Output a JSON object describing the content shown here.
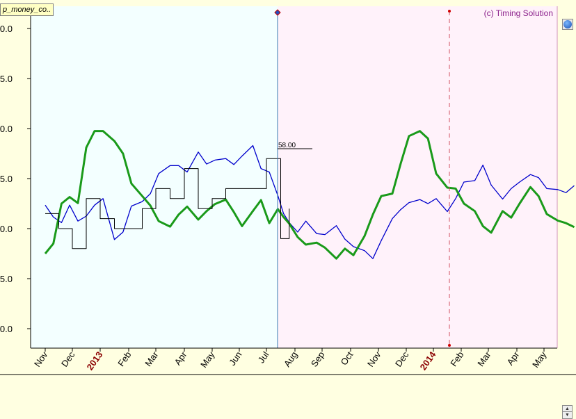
{
  "header": {
    "series_tag": "p_money_co..",
    "copyright": "(c) Timing Solution"
  },
  "marker_label": "58.00",
  "icons": {
    "globe": "globe-icon",
    "scroll_up": "arrow-up-icon",
    "scroll_down": "arrow-down-icon"
  },
  "colors": {
    "past_bg": "#f3ffff",
    "future_bg": "#fff2fa",
    "price": "#0000cc",
    "cycle": "#1a9a1a",
    "signal": "#000000",
    "year_label": "#8b0000",
    "axis": "#000000"
  },
  "chart_data": {
    "type": "line",
    "title": "",
    "xlabel": "",
    "ylabel": "",
    "x_tick_labels": [
      "Nov",
      "Dec",
      "2013",
      "Feb",
      "Mar",
      "Apr",
      "May",
      "Jun",
      "Jul",
      "Aug",
      "Sep",
      "Oct",
      "Nov",
      "Dec",
      "2014",
      "Feb",
      "Mar",
      "Apr",
      "May"
    ],
    "y_tick_labels": [
      "0.0",
      "5.0",
      "0.0",
      "5.0",
      "0.0",
      "5.0",
      "0.0"
    ],
    "grid": false,
    "series": [
      {
        "color": "#0000cc",
        "x": [
          0,
          0.3,
          0.6,
          0.9,
          1.2,
          1.5,
          1.8,
          2.1,
          2.5,
          2.8,
          3.1,
          3.5,
          3.8,
          4.1,
          4.5,
          4.8,
          5.1,
          5.5,
          5.8,
          6.1,
          6.5,
          6.8,
          7.1,
          7.5,
          7.8,
          8.1,
          8.4,
          8.6,
          8.8,
          9.1,
          9.4,
          9.8,
          10.1,
          10.5,
          10.8,
          11.1,
          11.5,
          11.8,
          12.1,
          12.5,
          12.8,
          13.1,
          13.5,
          13.8,
          14.1,
          14.5,
          14.8,
          15.1,
          15.5,
          15.8,
          16.1,
          16.5,
          16.8,
          17.1,
          17.5,
          17.8,
          18.1,
          18.5,
          18.8,
          19.1
        ],
        "values": [
          4.7,
          2.3,
          1.2,
          4.7,
          1.5,
          2.5,
          4.7,
          6.0,
          -2.2,
          -0.7,
          4.5,
          5.4,
          7.0,
          11.0,
          12.6,
          12.6,
          11.3,
          15.3,
          12.9,
          13.7,
          14.0,
          12.8,
          14.5,
          16.6,
          12.0,
          11.3,
          6.6,
          3.0,
          1.2,
          -0.7,
          1.5,
          -1.0,
          -1.2,
          0.6,
          -2.1,
          -3.6,
          -4.4,
          -6.0,
          -2.4,
          2.0,
          3.8,
          5.2,
          5.8,
          5.0,
          6.0,
          3.4,
          6.0,
          9.3,
          9.6,
          12.7,
          8.7,
          5.9,
          8.0,
          9.3,
          10.8,
          10.2,
          8.0,
          7.8,
          7.2,
          8.6
        ]
      },
      {
        "color": "#1a9a1a",
        "x": [
          0,
          0.3,
          0.6,
          0.9,
          1.2,
          1.5,
          1.8,
          2.1,
          2.5,
          2.8,
          3.1,
          3.5,
          3.8,
          4.1,
          4.5,
          4.8,
          5.1,
          5.5,
          5.8,
          6.1,
          6.5,
          6.8,
          7.1,
          7.5,
          7.8,
          8.1,
          8.4,
          8.6,
          8.8,
          9.1,
          9.4,
          9.8,
          10.1,
          10.5,
          10.8,
          11.1,
          11.5,
          11.8,
          12.1,
          12.5,
          12.8,
          13.1,
          13.5,
          13.8,
          14.1,
          14.5,
          14.8,
          15.1,
          15.5,
          15.8,
          16.1,
          16.5,
          16.8,
          17.1,
          17.5,
          17.8,
          18.1,
          18.5,
          18.8,
          19.1
        ],
        "values": [
          -5.0,
          -3.0,
          5.0,
          6.3,
          5.1,
          16.2,
          19.5,
          19.5,
          17.5,
          15.0,
          9.0,
          6.5,
          4.6,
          1.5,
          0.4,
          2.8,
          4.4,
          1.8,
          3.5,
          4.9,
          5.8,
          3.3,
          0.5,
          3.5,
          5.7,
          1.1,
          3.9,
          2.3,
          1.0,
          -1.7,
          -3.2,
          -2.8,
          -3.8,
          -6.0,
          -4.0,
          -5.3,
          -1.5,
          2.8,
          6.5,
          7.0,
          13.0,
          18.5,
          19.5,
          18.0,
          11.0,
          8.2,
          8.0,
          5.0,
          3.5,
          0.5,
          -0.8,
          3.5,
          2.2,
          5.0,
          8.3,
          6.5,
          2.9,
          1.6,
          1.1,
          0.3
        ]
      },
      {
        "color": "#000000",
        "x": [
          0,
          0.5,
          1.0,
          1.5,
          2.0,
          2.5,
          3.0,
          3.5,
          4.0,
          4.5,
          5.0,
          5.5,
          6.0,
          6.5,
          7.0,
          7.5,
          8.0,
          8.5,
          8.8
        ],
        "values": [
          3.0,
          0.0,
          -4.0,
          6.0,
          2.0,
          0.0,
          0.0,
          4.0,
          8.0,
          6.0,
          12.0,
          4.0,
          6.0,
          8.0,
          8.0,
          8.0,
          14.0,
          -2.0,
          4.0
        ]
      }
    ],
    "annotations": [
      "58.00"
    ]
  }
}
